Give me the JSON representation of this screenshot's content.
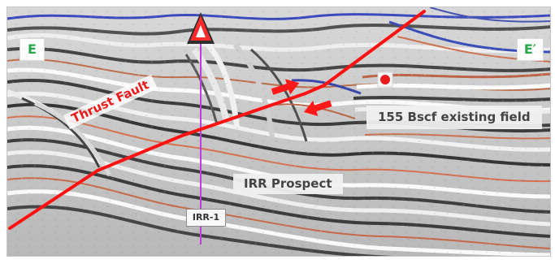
{
  "labels": {
    "left_corner": "E",
    "right_corner": "E′",
    "fault": "Thrust Fault",
    "field": "155 Bscf existing field",
    "prospect": "IRR Prospect",
    "well": "IRR-1"
  },
  "colors": {
    "fault_line": "#ff1111",
    "well_line": "#c23be0",
    "well_marker": "#ff2a2a",
    "arrow_fill": "#ff1a1a",
    "field_marker": "#ea1b1b",
    "corner_text": "#28a84a"
  },
  "icons": {
    "well_marker": "triangle-marker-icon",
    "field_marker": "field-marker-icon",
    "upper_arrow": "right-arrow-icon",
    "lower_arrow": "left-arrow-icon"
  }
}
